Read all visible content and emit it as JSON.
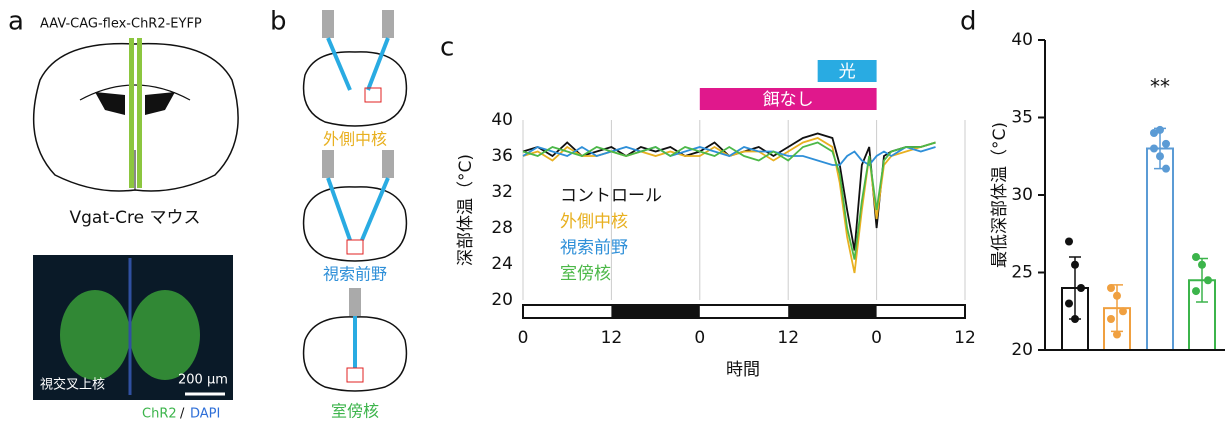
{
  "panels": {
    "a": {
      "label": "a",
      "virus": "AAV-CAG-flex-ChR2-EYFP",
      "mouse": "Vgat-Cre マウス",
      "region": "視交叉上核",
      "scale": "200 µm",
      "stain": [
        "ChR2",
        "/",
        "DAPI"
      ]
    },
    "b": {
      "label": "b",
      "targets": [
        "外側中核",
        "視索前野",
        "室傍核"
      ]
    }
  },
  "chart_data": [
    {
      "type": "line",
      "panel_label": "c",
      "xlabel": "時間",
      "ylabel": "深部体温（°C)",
      "x": [
        0,
        2,
        4,
        6,
        8,
        10,
        12,
        14,
        16,
        18,
        20,
        22,
        24,
        26,
        28,
        30,
        32,
        34,
        36,
        38,
        40,
        42,
        43,
        44,
        45,
        46,
        47,
        48,
        49,
        50,
        52,
        54,
        56
      ],
      "series": [
        {
          "name": "コントロール",
          "color": "#111111",
          "values": [
            36.5,
            37,
            36,
            37.5,
            36,
            36.5,
            37,
            36,
            37,
            36.5,
            37,
            36,
            36.5,
            37.5,
            36,
            36.5,
            37,
            36,
            37,
            38,
            38.5,
            38,
            35,
            30,
            25.5,
            35,
            37,
            28,
            36,
            36.5,
            37,
            37,
            37.5
          ]
        },
        {
          "name": "外側中核",
          "color": "#e8b020",
          "values": [
            36,
            36.5,
            35.5,
            37,
            36,
            36,
            36.5,
            36,
            36.5,
            36,
            36.5,
            36,
            36,
            37,
            36,
            36.5,
            36.5,
            35.5,
            36.5,
            37.5,
            38,
            37,
            33,
            27,
            23,
            30,
            36,
            29,
            35,
            36,
            36.5,
            37,
            37.5
          ]
        },
        {
          "name": "視索前野",
          "color": "#2e8fd8",
          "values": [
            36,
            37,
            36.5,
            36,
            37,
            36,
            36.5,
            37,
            36.5,
            37,
            36,
            36.5,
            37,
            36.5,
            36,
            37,
            36.5,
            36.5,
            36,
            36,
            35.5,
            35,
            35,
            36,
            36.5,
            35.5,
            35,
            36,
            36.5,
            36,
            37,
            36.5,
            37
          ]
        },
        {
          "name": "室傍核",
          "color": "#4cb848",
          "values": [
            36.5,
            36,
            37,
            36.5,
            36,
            37,
            36.5,
            36,
            36.5,
            37,
            36,
            37,
            36.5,
            36,
            37,
            36,
            35.5,
            36.5,
            35.5,
            37,
            37.5,
            36.5,
            34,
            28,
            24.5,
            31,
            36,
            30,
            35.5,
            36.5,
            37,
            37,
            37.5
          ]
        }
      ],
      "xlim": [
        0,
        60
      ],
      "xticks": [
        0,
        12,
        {
          "value": 24,
          "label": "0"
        },
        {
          "value": 36,
          "label": "12"
        },
        {
          "value": 48,
          "label": "0"
        },
        {
          "value": 60,
          "label": "12"
        }
      ],
      "ylim": [
        20,
        40
      ],
      "yticks": [
        20,
        24,
        28,
        32,
        36,
        40
      ],
      "grid": "x",
      "annotations": [
        {
          "label": "餌なし",
          "xrange": [
            24,
            48
          ],
          "color": "#e0188c"
        },
        {
          "label": "光",
          "xrange": [
            40,
            48
          ],
          "color": "#29abe2"
        }
      ]
    },
    {
      "type": "bar",
      "panel_label": "d",
      "ylabel": "最低深部体温（°C)",
      "categories": [
        null,
        null,
        null,
        null
      ],
      "values": [
        24,
        22.7,
        33,
        24.5
      ],
      "errors": [
        2,
        1.5,
        1.3,
        1.4
      ],
      "colors": [
        "#111111",
        "#f0a040",
        "#5b9bd5",
        "#3cb44b"
      ],
      "points": [
        [
          27,
          25.5,
          24,
          23,
          22
        ],
        [
          24,
          23.5,
          22.5,
          22,
          21
        ],
        [
          34,
          34.2,
          33.3,
          33,
          32.5,
          31.7
        ],
        [
          26,
          25.5,
          24.5,
          23.8
        ]
      ],
      "significance": [
        null,
        null,
        "**",
        null
      ],
      "ylim": [
        20,
        40
      ],
      "yticks": [
        20,
        25,
        30,
        35,
        40
      ]
    }
  ]
}
